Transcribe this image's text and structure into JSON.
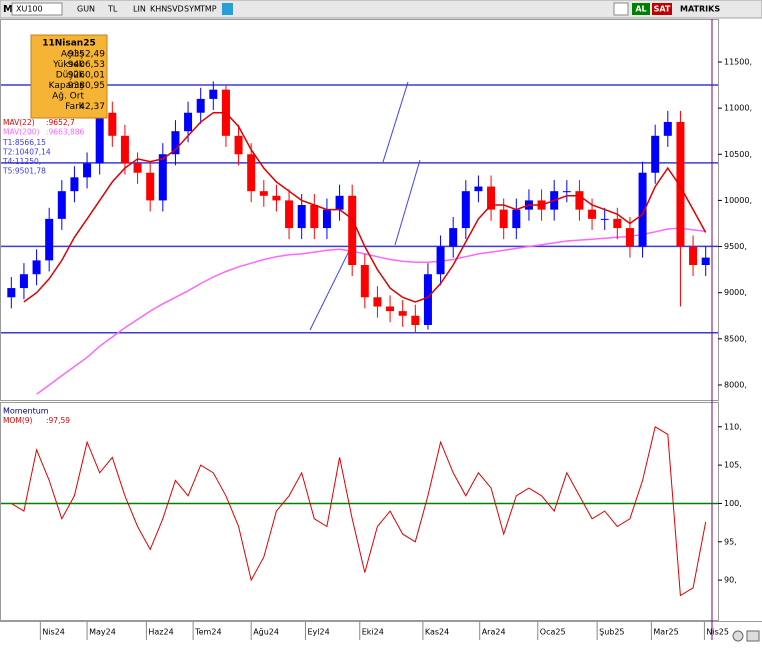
{
  "toolbar": {
    "logo": "M",
    "left": [
      "XU100",
      "GUN",
      "TL",
      "LIN",
      "KHN",
      "SVD",
      "SYM",
      "TMP"
    ],
    "right": [
      "AL",
      "SAT",
      "MATRIKS"
    ]
  },
  "info_box": {
    "date": "11Nisan25",
    "rows": [
      {
        "label": "Açılış",
        "value": "9352,49"
      },
      {
        "label": "Yüksek",
        "value": "9406,53"
      },
      {
        "label": "Düşük",
        "value": "9260,01"
      },
      {
        "label": "Kapanış",
        "value": "9380,95"
      },
      {
        "label": "Ağ. Ort",
        "value": ""
      },
      {
        "label": "Fark",
        "value": "42,37"
      }
    ]
  },
  "chart_data": [
    {
      "type": "candlestick",
      "title": "XU100",
      "up_color": "#0000ff",
      "down_color": "#ff0000",
      "open": [
        8950,
        9050,
        9200,
        9350,
        9800,
        10100,
        10250,
        10400,
        10950,
        10700,
        10400,
        10300,
        10000,
        10500,
        10750,
        10950,
        11100,
        11200,
        10700,
        10500,
        10100,
        10050,
        10000,
        9700,
        9950,
        9700,
        9900,
        10050,
        9300,
        8950,
        8850,
        8800,
        8750,
        8650,
        9200,
        9500,
        9700,
        10100,
        10150,
        9900,
        9700,
        9900,
        10000,
        9900,
        10100,
        10100,
        9900,
        9800,
        9800,
        9700,
        9500,
        10300,
        10700,
        10850,
        9500,
        9300
      ],
      "high": [
        9170,
        9320,
        9470,
        9920,
        10220,
        10370,
        10520,
        11070,
        11070,
        10820,
        10520,
        10420,
        10620,
        10870,
        11070,
        11220,
        11290,
        11250,
        10820,
        10620,
        10220,
        10170,
        10120,
        10070,
        10070,
        10020,
        10170,
        10170,
        9420,
        9070,
        8970,
        8920,
        8870,
        9320,
        9620,
        9820,
        10220,
        10270,
        10270,
        10020,
        10020,
        10120,
        10120,
        10220,
        10220,
        10220,
        10020,
        9920,
        9920,
        9820,
        10420,
        10820,
        10970,
        10970,
        9620,
        9500
      ],
      "low": [
        8830,
        8930,
        9080,
        9230,
        9680,
        9980,
        10130,
        10280,
        10580,
        10280,
        10180,
        9880,
        9880,
        10380,
        10630,
        10830,
        10980,
        10580,
        10380,
        9980,
        9930,
        9880,
        9580,
        9580,
        9580,
        9580,
        9780,
        9180,
        8830,
        8730,
        8680,
        8630,
        8560,
        8600,
        9080,
        9380,
        9580,
        9980,
        9780,
        9580,
        9580,
        9780,
        9780,
        9780,
        9980,
        9780,
        9680,
        9680,
        9580,
        9380,
        9380,
        10180,
        10580,
        8850,
        9180,
        9180
      ],
      "close": [
        9050,
        9200,
        9350,
        9800,
        10100,
        10250,
        10400,
        10950,
        10700,
        10400,
        10300,
        10000,
        10500,
        10750,
        10950,
        11100,
        11200,
        10700,
        10500,
        10100,
        10050,
        10000,
        9700,
        9950,
        9700,
        9900,
        10050,
        9300,
        8950,
        8850,
        8800,
        8750,
        8650,
        9200,
        9500,
        9700,
        10100,
        10150,
        9900,
        9700,
        9900,
        10000,
        9900,
        10100,
        10100,
        9900,
        9800,
        9800,
        9700,
        9500,
        10300,
        10700,
        10850,
        9500,
        9300,
        9380
      ],
      "series": [
        {
          "name": "MAV(200)",
          "color": "#ff66ff",
          "last_label": ":9663,886",
          "values": [
            null,
            null,
            7900,
            8000,
            8100,
            8200,
            8300,
            8420,
            8520,
            8620,
            8710,
            8800,
            8880,
            8950,
            9020,
            9100,
            9170,
            9230,
            9280,
            9320,
            9360,
            9390,
            9410,
            9420,
            9440,
            9460,
            9470,
            9450,
            9420,
            9390,
            9360,
            9340,
            9330,
            9330,
            9340,
            9360,
            9390,
            9420,
            9440,
            9460,
            9480,
            9500,
            9520,
            9540,
            9560,
            9570,
            9580,
            9590,
            9600,
            9610,
            9630,
            9660,
            9690,
            9700,
            9680,
            9663.886
          ]
        },
        {
          "name": "MAV(22)",
          "color": "#e00000",
          "last_label": ":9652,7",
          "values": [
            null,
            8900,
            9000,
            9150,
            9350,
            9600,
            9800,
            10000,
            10200,
            10350,
            10450,
            10420,
            10450,
            10550,
            10700,
            10850,
            10950,
            10950,
            10800,
            10550,
            10350,
            10200,
            10100,
            10000,
            9950,
            9900,
            9900,
            9800,
            9500,
            9250,
            9050,
            8950,
            8900,
            8950,
            9100,
            9300,
            9550,
            9800,
            9950,
            9950,
            9900,
            9950,
            9950,
            10000,
            10050,
            10050,
            9950,
            9900,
            9850,
            9750,
            9850,
            10150,
            10350,
            10150,
            9900,
            9652.7
          ]
        }
      ],
      "levels": [
        {
          "value": 8566.15,
          "label": "T1:8566,15"
        },
        {
          "value": 10407.14,
          "label": "T2:10407,14"
        },
        {
          "value": 11250,
          "label": "T4:11250,"
        },
        {
          "value": 9501.78,
          "label": "T5:9501,78"
        }
      ],
      "level_color": "#3b3bdc",
      "xlim": [
        -0.5,
        55.5
      ],
      "ylim": [
        7837,
        11955
      ],
      "yticks": [
        {
          "value": 8000,
          "label": "8000,"
        },
        {
          "value": 8500,
          "label": "8500,"
        },
        {
          "value": 9000,
          "label": "9000,"
        },
        {
          "value": 9500,
          "label": "9500,"
        },
        {
          "value": 10000,
          "label": "10000,"
        },
        {
          "value": 10500,
          "label": "10500,"
        },
        {
          "value": 11000,
          "label": "11000,"
        },
        {
          "value": 11500,
          "label": "11500,"
        }
      ]
    },
    {
      "type": "line",
      "title": "Momentum",
      "series": [
        {
          "name": "MOM(9)",
          "color": "#e00000",
          "last_label": ":97,59",
          "values": [
            100,
            99,
            107,
            103,
            98,
            101,
            108,
            104,
            106,
            101,
            97,
            94,
            98,
            103,
            101,
            105,
            104,
            101,
            97,
            90,
            93,
            99,
            101,
            104,
            98,
            97,
            106,
            98,
            91,
            97,
            99,
            96,
            95,
            101,
            108,
            104,
            101,
            104,
            102,
            96,
            101,
            102,
            101,
            99,
            104,
            101,
            98,
            99,
            97,
            98,
            103,
            110,
            109,
            88,
            89,
            97.59
          ]
        }
      ],
      "ref_line": {
        "value": 100,
        "color": "#008000"
      },
      "xlim": [
        -0.5,
        55.5
      ],
      "ylim": [
        84.8,
        113.1
      ],
      "yticks": [
        {
          "value": 90,
          "label": "90,"
        },
        {
          "value": 95,
          "label": "95,"
        },
        {
          "value": 100,
          "label": "100,"
        },
        {
          "value": 105,
          "label": "105,"
        },
        {
          "value": 110,
          "label": "110,"
        }
      ],
      "xticks": [
        {
          "value": 2.3,
          "label": "Nis24"
        },
        {
          "value": 6.0,
          "label": "May24"
        },
        {
          "value": 10.7,
          "label": "Haz24"
        },
        {
          "value": 14.4,
          "label": "Tem24"
        },
        {
          "value": 19.0,
          "label": "Ağu24"
        },
        {
          "value": 23.3,
          "label": "Eyl24"
        },
        {
          "value": 27.6,
          "label": "Eki24"
        },
        {
          "value": 32.6,
          "label": "Kas24"
        },
        {
          "value": 37.1,
          "label": "Ara24"
        },
        {
          "value": 41.7,
          "label": "Oca25"
        },
        {
          "value": 46.4,
          "label": "Şub25"
        },
        {
          "value": 50.7,
          "label": "Mar25"
        },
        {
          "value": 54.9,
          "label": "Nis25"
        }
      ]
    }
  ]
}
